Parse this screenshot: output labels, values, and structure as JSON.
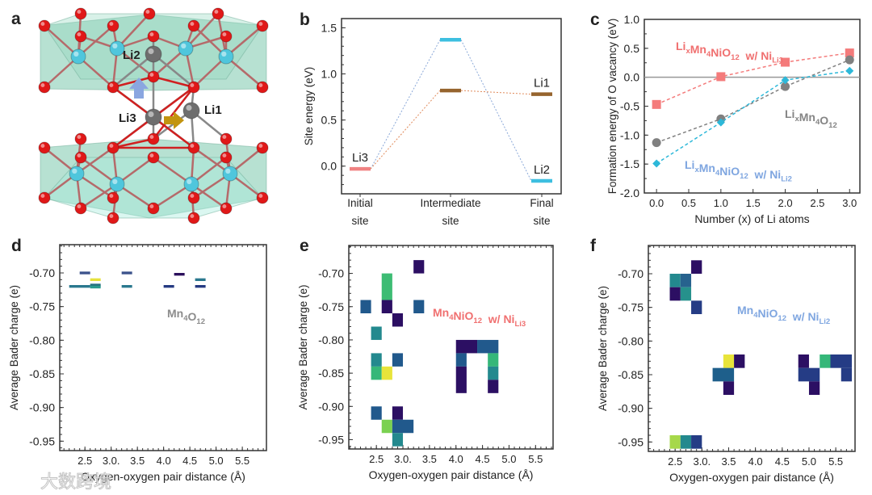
{
  "panels": {
    "a": {
      "letter": "a",
      "atom_labels": [
        "Li1",
        "Li2",
        "Li3"
      ]
    },
    "b": {
      "letter": "b"
    },
    "c": {
      "letter": "c"
    },
    "d": {
      "letter": "d"
    },
    "e": {
      "letter": "e"
    },
    "f": {
      "letter": "f"
    }
  },
  "watermark": "大数跨境",
  "chart_data": [
    {
      "id": "b",
      "type": "line",
      "title": "",
      "ylabel": "Site energy (eV)",
      "xlabel": "",
      "ylim": [
        -0.3,
        1.6
      ],
      "yticks": [
        0.0,
        0.5,
        1.0,
        1.5
      ],
      "ytick_labels": [
        "0.0",
        "0.5",
        "1.0",
        "1.5"
      ],
      "categories": [
        [
          "Initial",
          "site"
        ],
        [
          "Intermediate",
          "site"
        ],
        [
          "Final",
          "site"
        ]
      ],
      "levels": [
        {
          "site": 0,
          "value": -0.03,
          "color": "#f08282",
          "label": "Li3"
        },
        {
          "site": 1,
          "value": 1.37,
          "color": "#3dbfe0",
          "label": ""
        },
        {
          "site": 1,
          "value": 0.82,
          "color": "#96642e",
          "label": ""
        },
        {
          "site": 2,
          "value": 0.78,
          "color": "#96642e",
          "label": "Li1"
        },
        {
          "site": 2,
          "value": -0.16,
          "color": "#3dbfe0",
          "label": "Li2"
        }
      ],
      "paths": [
        {
          "name": "Li3 to Li2",
          "levels": [
            0,
            1,
            4
          ],
          "color": "#8aa8d8"
        },
        {
          "name": "Li3 to Li1",
          "levels": [
            0,
            2,
            3
          ],
          "color": "#e08a5a"
        }
      ]
    },
    {
      "id": "c",
      "type": "line",
      "ylabel": "Formation energy of O vacancy (eV)",
      "xlabel": "Number (x) of Li atoms",
      "xlim": [
        -0.19,
        3.16
      ],
      "ylim": [
        -2.0,
        1.0
      ],
      "xticks": [
        0.0,
        0.5,
        1.0,
        1.5,
        2.0,
        2.5,
        3.0
      ],
      "xtick_labels": [
        "0.0",
        "0.5",
        "1.0",
        "1.5",
        "2.0",
        "2.5",
        "3.0"
      ],
      "yticks": [
        -2.0,
        -1.5,
        -1.0,
        -0.5,
        0.0,
        0.5,
        1.0
      ],
      "ytick_labels": [
        "-2.0",
        "-1.5",
        "-1.0",
        "-0.5",
        "0.0",
        "0.5",
        "1.0"
      ],
      "reference_line": 0.0,
      "x": [
        0,
        1,
        2,
        3
      ],
      "series": [
        {
          "name": "LixMn4NiO12 w/ NiLi3",
          "marker": "square",
          "color": "#f47b7b",
          "values": [
            -0.47,
            0.01,
            0.26,
            0.42
          ],
          "label_parts": [
            {
              "t": "Li"
            },
            {
              "t": "x",
              "sub": true
            },
            {
              "t": "Mn"
            },
            {
              "t": "4",
              "sub": true
            },
            {
              "t": "NiO"
            },
            {
              "t": "12",
              "sub": true
            },
            {
              "t": "  w/ Ni"
            },
            {
              "t": "Li3",
              "sub": true
            }
          ],
          "label_color": "#f07070"
        },
        {
          "name": "LixMn4O12",
          "marker": "circle",
          "color": "#808080",
          "values": [
            -1.13,
            -0.72,
            -0.16,
            0.3
          ],
          "label_parts": [
            {
              "t": "Li"
            },
            {
              "t": "x",
              "sub": true
            },
            {
              "t": "Mn"
            },
            {
              "t": "4",
              "sub": true
            },
            {
              "t": "O"
            },
            {
              "t": "12",
              "sub": true
            }
          ],
          "label_color": "#858585"
        },
        {
          "name": "LixMn4NiO12 w/ NiLi2",
          "marker": "diamond",
          "color": "#2db8d9",
          "values": [
            -1.49,
            -0.78,
            -0.05,
            0.11
          ],
          "label_parts": [
            {
              "t": "Li"
            },
            {
              "t": "x",
              "sub": true
            },
            {
              "t": "Mn"
            },
            {
              "t": "4",
              "sub": true
            },
            {
              "t": "NiO"
            },
            {
              "t": "12",
              "sub": true
            },
            {
              "t": "  w/ Ni"
            },
            {
              "t": "Li2",
              "sub": true
            }
          ],
          "label_color": "#7fa6e0"
        }
      ]
    },
    {
      "id": "d",
      "type": "heatmap",
      "ylabel": "Average Bader charge (e)",
      "xlabel": "Oxygen-oxygen pair distance (Å)",
      "xlim": [
        2.02,
        5.96
      ],
      "ylim": [
        -0.964,
        -0.658
      ],
      "xticks": [
        2.5,
        3.0,
        3.5,
        4.0,
        4.5,
        5.0,
        5.5
      ],
      "xtick_labels": [
        "2.5",
        "3.0.",
        "3.5",
        "4.0",
        "4.5",
        "5.0",
        "5.5"
      ],
      "yticks": [
        -0.7,
        -0.75,
        -0.8,
        -0.85,
        -0.9,
        -0.95
      ],
      "ytick_labels": [
        "-0.70",
        "-0.75",
        "-0.80",
        "-0.85",
        "-0.90",
        "-0.95"
      ],
      "annotation_parts": [
        {
          "t": "Mn"
        },
        {
          "t": "4",
          "sub": true
        },
        {
          "t": "O"
        },
        {
          "t": "12",
          "sub": true
        }
      ],
      "annotation_color": "#8c8c8c",
      "cell_height": 0.004,
      "cells": [
        {
          "x0": 2.4,
          "x1": 2.6,
          "y": -0.7,
          "color": "#3b528b"
        },
        {
          "x0": 2.2,
          "x1": 2.6,
          "y": -0.72,
          "color": "#2a788e"
        },
        {
          "x0": 2.6,
          "x1": 2.8,
          "y": -0.71,
          "color": "#e6e13c"
        },
        {
          "x0": 2.6,
          "x1": 2.8,
          "y": -0.718,
          "color": "#25707f"
        },
        {
          "x0": 2.6,
          "x1": 2.8,
          "y": -0.721,
          "color": "#2a9a8e"
        },
        {
          "x0": 3.2,
          "x1": 3.4,
          "y": -0.7,
          "color": "#3b528b"
        },
        {
          "x0": 3.2,
          "x1": 3.4,
          "y": -0.72,
          "color": "#2a788e"
        },
        {
          "x0": 4.0,
          "x1": 4.2,
          "y": -0.72,
          "color": "#253a82"
        },
        {
          "x0": 4.2,
          "x1": 4.4,
          "y": -0.702,
          "color": "#2b0f5c"
        },
        {
          "x0": 4.6,
          "x1": 4.8,
          "y": -0.71,
          "color": "#2a788e"
        },
        {
          "x0": 4.6,
          "x1": 4.8,
          "y": -0.72,
          "color": "#253a82"
        }
      ]
    },
    {
      "id": "e",
      "type": "heatmap",
      "ylabel": "Average Bader charge (e)",
      "xlabel": "Oxygen-oxygen pair distance (Å)",
      "xlim": [
        1.98,
        5.83
      ],
      "ylim": [
        -0.964,
        -0.658
      ],
      "xticks": [
        2.5,
        3.0,
        3.5,
        4.0,
        4.5,
        5.0,
        5.5
      ],
      "xtick_labels": [
        "2.5",
        "3.0.",
        "3.5",
        "4.0",
        "4.5",
        "5.0",
        "5.5"
      ],
      "yticks": [
        -0.7,
        -0.75,
        -0.8,
        -0.85,
        -0.9,
        -0.95
      ],
      "ytick_labels": [
        "-0.70",
        "-0.75",
        "-0.80",
        "-0.85",
        "-0.90",
        "-0.95"
      ],
      "annotation_parts": [
        {
          "t": "Mn"
        },
        {
          "t": "4",
          "sub": true
        },
        {
          "t": "NiO"
        },
        {
          "t": "12",
          "sub": true
        },
        {
          "t": "  w/ Ni"
        },
        {
          "t": "Li3",
          "sub": true
        }
      ],
      "annotation_color": "#f07070",
      "cell_height": 0.02,
      "cells": [
        {
          "x0": 3.2,
          "x1": 3.4,
          "y0": -0.7,
          "y1": -0.68,
          "color": "#2c0f63"
        },
        {
          "x0": 2.6,
          "x1": 2.8,
          "y0": -0.74,
          "y1": -0.7,
          "color": "#3dbc74"
        },
        {
          "x0": 2.6,
          "x1": 2.8,
          "y0": -0.76,
          "y1": -0.74,
          "color": "#2c0f63"
        },
        {
          "x0": 2.2,
          "x1": 2.4,
          "y0": -0.76,
          "y1": -0.74,
          "color": "#21598c"
        },
        {
          "x0": 3.2,
          "x1": 3.4,
          "y0": -0.76,
          "y1": -0.74,
          "color": "#21598c"
        },
        {
          "x0": 2.8,
          "x1": 3.0,
          "y0": -0.78,
          "y1": -0.76,
          "color": "#2c0f63"
        },
        {
          "x0": 2.4,
          "x1": 2.6,
          "y0": -0.8,
          "y1": -0.78,
          "color": "#23898e"
        },
        {
          "x0": 2.4,
          "x1": 2.6,
          "y0": -0.84,
          "y1": -0.82,
          "color": "#23898e"
        },
        {
          "x0": 2.4,
          "x1": 2.6,
          "y0": -0.86,
          "y1": -0.84,
          "color": "#35b779"
        },
        {
          "x0": 2.6,
          "x1": 2.8,
          "y0": -0.86,
          "y1": -0.84,
          "color": "#e8e43a"
        },
        {
          "x0": 2.8,
          "x1": 3.0,
          "y0": -0.84,
          "y1": -0.82,
          "color": "#21598c"
        },
        {
          "x0": 4.0,
          "x1": 4.4,
          "y0": -0.82,
          "y1": -0.8,
          "color": "#2c0f63"
        },
        {
          "x0": 4.4,
          "x1": 4.8,
          "y0": -0.82,
          "y1": -0.8,
          "color": "#21598c"
        },
        {
          "x0": 4.0,
          "x1": 4.2,
          "y0": -0.84,
          "y1": -0.82,
          "color": "#21598c"
        },
        {
          "x0": 4.0,
          "x1": 4.2,
          "y0": -0.88,
          "y1": -0.84,
          "color": "#2c0f63"
        },
        {
          "x0": 4.6,
          "x1": 4.8,
          "y0": -0.84,
          "y1": -0.82,
          "color": "#35b779"
        },
        {
          "x0": 4.6,
          "x1": 4.8,
          "y0": -0.86,
          "y1": -0.84,
          "color": "#23898e"
        },
        {
          "x0": 4.6,
          "x1": 4.8,
          "y0": -0.88,
          "y1": -0.86,
          "color": "#2c0f63"
        },
        {
          "x0": 2.4,
          "x1": 2.6,
          "y0": -0.92,
          "y1": -0.9,
          "color": "#21598c"
        },
        {
          "x0": 2.8,
          "x1": 3.0,
          "y0": -0.92,
          "y1": -0.9,
          "color": "#2c0f63"
        },
        {
          "x0": 2.6,
          "x1": 2.8,
          "y0": -0.94,
          "y1": -0.92,
          "color": "#7ad151"
        },
        {
          "x0": 2.8,
          "x1": 3.2,
          "y0": -0.94,
          "y1": -0.92,
          "color": "#21598c"
        },
        {
          "x0": 2.8,
          "x1": 3.0,
          "y0": -0.96,
          "y1": -0.94,
          "color": "#23898e"
        }
      ]
    },
    {
      "id": "f",
      "type": "heatmap",
      "ylabel": "Average Bader charge (e)",
      "xlabel": "Oxygen-oxygen pair distance (Å)",
      "xlim": [
        2.0,
        5.86
      ],
      "ylim": [
        -0.964,
        -0.658
      ],
      "xticks": [
        2.5,
        3.0,
        3.5,
        4.0,
        4.5,
        5.0,
        5.5
      ],
      "xtick_labels": [
        "2.5",
        "3.0.",
        "3.5",
        "4.0",
        "4.5",
        "5.0",
        "5.5"
      ],
      "yticks": [
        -0.7,
        -0.75,
        -0.8,
        -0.85,
        -0.9,
        -0.95
      ],
      "ytick_labels": [
        "-0.70",
        "-0.75",
        "-0.80",
        "-0.85",
        "-0.90",
        "-0.95"
      ],
      "annotation_parts": [
        {
          "t": "Mn"
        },
        {
          "t": "4",
          "sub": true
        },
        {
          "t": "NiO"
        },
        {
          "t": "12",
          "sub": true
        },
        {
          "t": "  w/ Ni"
        },
        {
          "t": "Li2",
          "sub": true
        }
      ],
      "annotation_color": "#7fa6e0",
      "cell_height": 0.02,
      "cells": [
        {
          "x0": 2.8,
          "x1": 3.0,
          "y0": -0.7,
          "y1": -0.68,
          "color": "#2c0f63"
        },
        {
          "x0": 2.4,
          "x1": 2.6,
          "y0": -0.72,
          "y1": -0.7,
          "color": "#23898e"
        },
        {
          "x0": 2.6,
          "x1": 2.8,
          "y0": -0.72,
          "y1": -0.7,
          "color": "#27628e"
        },
        {
          "x0": 2.4,
          "x1": 2.6,
          "y0": -0.74,
          "y1": -0.72,
          "color": "#2c0f63"
        },
        {
          "x0": 2.6,
          "x1": 2.8,
          "y0": -0.74,
          "y1": -0.72,
          "color": "#26918c"
        },
        {
          "x0": 2.8,
          "x1": 3.0,
          "y0": -0.76,
          "y1": -0.74,
          "color": "#253c85"
        },
        {
          "x0": 3.4,
          "x1": 3.6,
          "y0": -0.84,
          "y1": -0.82,
          "color": "#e8e43a"
        },
        {
          "x0": 3.6,
          "x1": 3.8,
          "y0": -0.84,
          "y1": -0.82,
          "color": "#2c0f63"
        },
        {
          "x0": 3.2,
          "x1": 3.6,
          "y0": -0.86,
          "y1": -0.84,
          "color": "#1e5f8b"
        },
        {
          "x0": 3.4,
          "x1": 3.6,
          "y0": -0.88,
          "y1": -0.86,
          "color": "#2c0f63"
        },
        {
          "x0": 4.8,
          "x1": 5.0,
          "y0": -0.84,
          "y1": -0.82,
          "color": "#2c0f63"
        },
        {
          "x0": 5.2,
          "x1": 5.4,
          "y0": -0.84,
          "y1": -0.82,
          "color": "#35b779"
        },
        {
          "x0": 5.4,
          "x1": 5.8,
          "y0": -0.84,
          "y1": -0.82,
          "color": "#253c85"
        },
        {
          "x0": 5.6,
          "x1": 5.8,
          "y0": -0.86,
          "y1": -0.84,
          "color": "#253c85"
        },
        {
          "x0": 4.8,
          "x1": 5.2,
          "y0": -0.86,
          "y1": -0.84,
          "color": "#253c85"
        },
        {
          "x0": 5.0,
          "x1": 5.2,
          "y0": -0.88,
          "y1": -0.86,
          "color": "#2c0f63"
        },
        {
          "x0": 2.4,
          "x1": 2.6,
          "y0": -0.96,
          "y1": -0.94,
          "color": "#a6d84a"
        },
        {
          "x0": 2.6,
          "x1": 2.8,
          "y0": -0.96,
          "y1": -0.94,
          "color": "#23898e"
        },
        {
          "x0": 2.8,
          "x1": 3.0,
          "y0": -0.96,
          "y1": -0.94,
          "color": "#253c85"
        }
      ]
    }
  ]
}
